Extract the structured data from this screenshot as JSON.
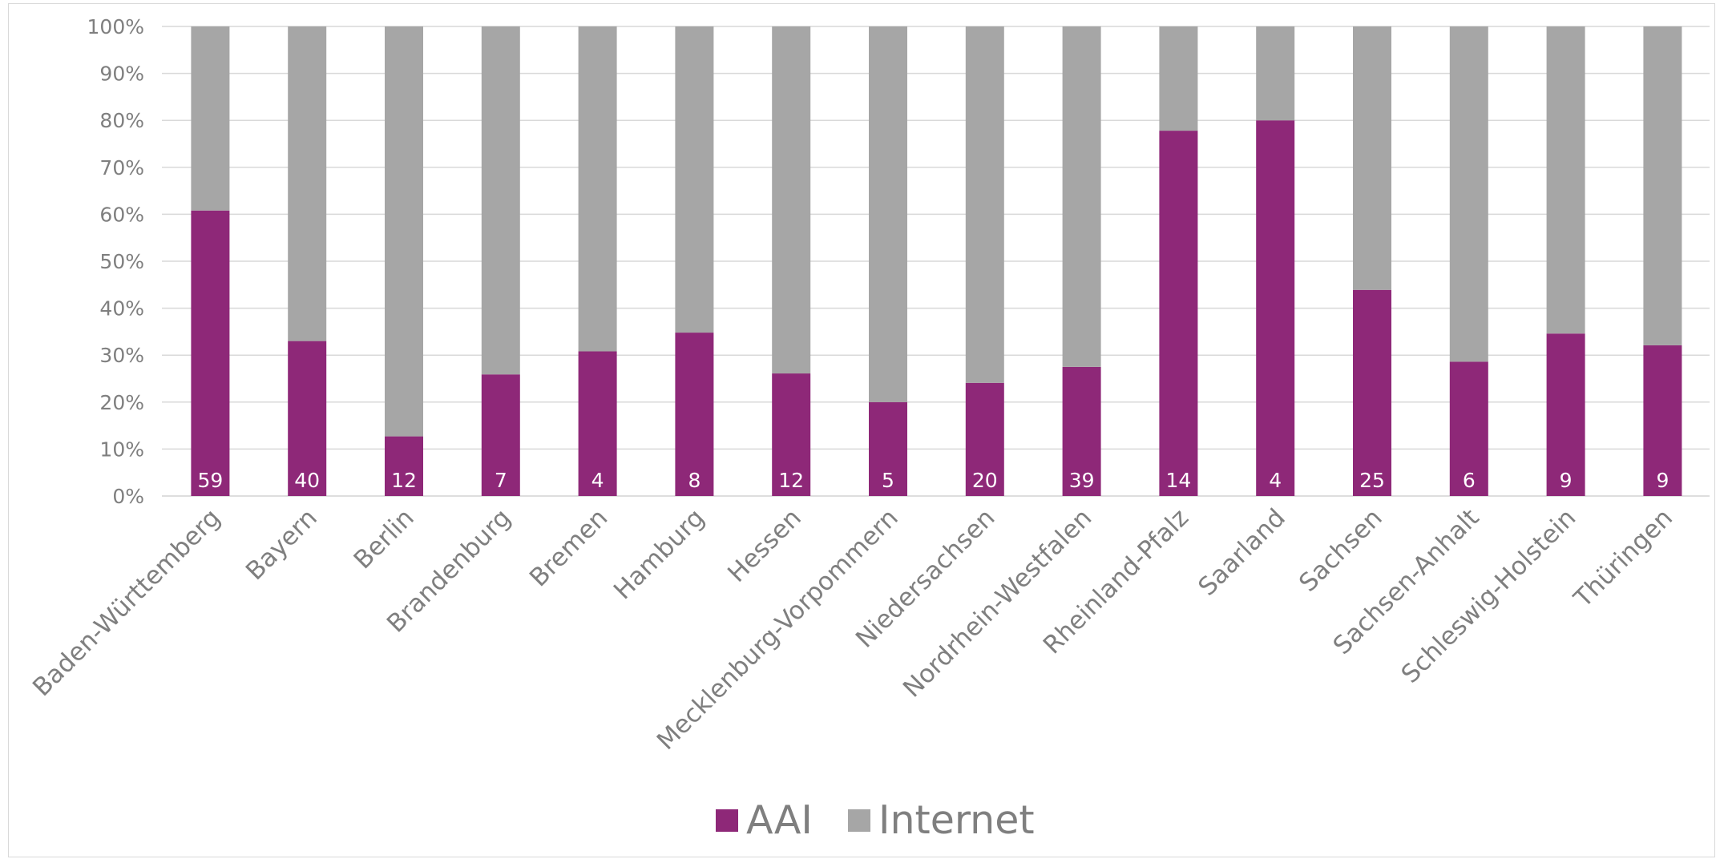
{
  "chart_data": {
    "type": "bar",
    "stacked": "percent",
    "categories": [
      "Baden-Württemberg",
      "Bayern",
      "Berlin",
      "Brandenburg",
      "Bremen",
      "Hamburg",
      "Hessen",
      "Mecklenburg-Vorpommern",
      "Niedersachsen",
      "Nordrhein-Westfalen",
      "Rheinland-Pfalz",
      "Saarland",
      "Sachsen",
      "Sachsen-Anhalt",
      "Schleswig-Holstein",
      "Thüringen"
    ],
    "series": [
      {
        "name": "AAI",
        "color": "#8e2878",
        "values": [
          60.8,
          33.0,
          12.7,
          25.9,
          30.8,
          34.8,
          26.1,
          20.0,
          24.1,
          27.5,
          77.8,
          80.0,
          43.9,
          28.6,
          34.6,
          32.1
        ],
        "data_labels": [
          "59",
          "40",
          "12",
          "7",
          "4",
          "8",
          "12",
          "5",
          "20",
          "39",
          "14",
          "4",
          "25",
          "6",
          "9",
          "9"
        ]
      },
      {
        "name": "Internet",
        "color": "#a6a6a6",
        "values": [
          39.2,
          67.0,
          87.3,
          74.1,
          69.2,
          65.2,
          73.9,
          80.0,
          75.9,
          72.5,
          22.2,
          20.0,
          56.1,
          71.4,
          65.4,
          67.9
        ]
      }
    ],
    "yticks": [
      "0%",
      "10%",
      "20%",
      "30%",
      "40%",
      "50%",
      "60%",
      "70%",
      "80%",
      "90%",
      "100%"
    ],
    "ylim": [
      0,
      100
    ],
    "grid": true,
    "legend_position": "bottom",
    "title": "",
    "xlabel": "",
    "ylabel": ""
  }
}
